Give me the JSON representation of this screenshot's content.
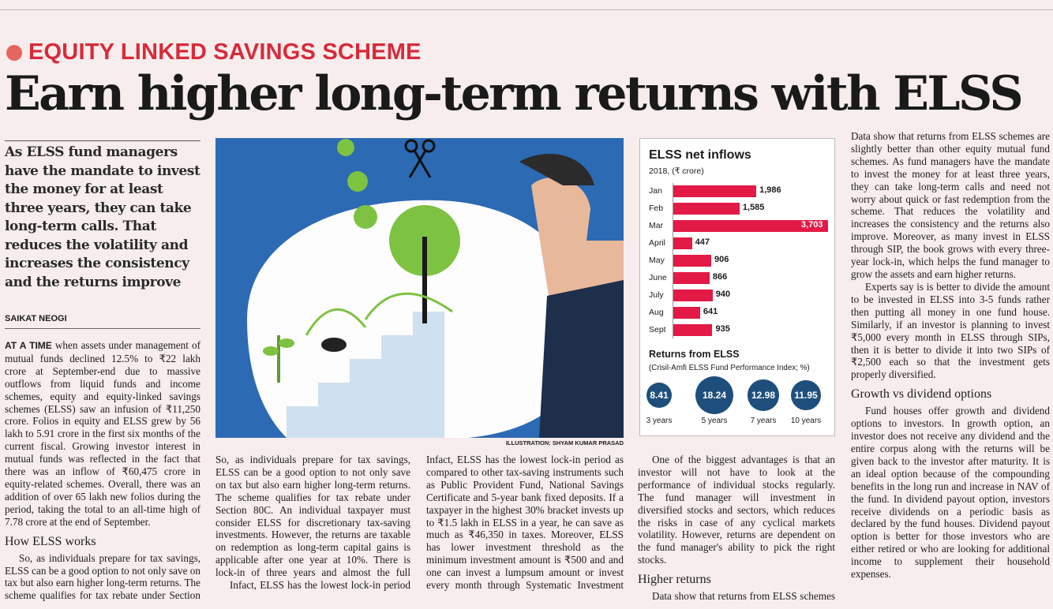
{
  "kicker": "EQUITY LINKED SAVINGS SCHEME",
  "headline": "Earn higher long-term returns with ELSS",
  "deck": "As ELSS fund managers have the mandate to invest the money for at least three years, they can take long-term calls. That reduces the volatility and increases the consistency and the returns improve",
  "byline": "SAIKAT NEOGI",
  "illustration_credit": "ILLUSTRATION: SHYAM KUMAR PRASAD",
  "body": {
    "lead": "AT A TIME",
    "p1": " when assets under management of mutual funds declined 12.5% to ₹22 lakh crore at September-end due to massive outflows from liquid funds and income schemes, equity and equity-linked savings schemes (ELSS) saw an infusion of ₹11,250 crore. Folios in equity and ELSS grew by 56 lakh to 5.91 crore in the first six months of the current fiscal. Growing investor interest in mutual funds was reflected in the fact that there was an inflow of ₹60,475 crore in equity-related schemes. Overall, there was an addition of over 65 lakh new folios during the period, taking the total to an all-time high of 7.78 crore at the end of September.",
    "sub1": "How ELSS works",
    "p2": "So, as individuals prepare for tax savings, ELSS can be a good option to not only save on tax but also earn higher long-term returns. The scheme qualifies for tax rebate under Section 80C. An individual taxpayer must consider ELSS for discretionary tax-saving investments. However, the returns are taxable on redemption as long-term capital gains is applicable after one year at 10%. There is lock-in of three years and almost the full amount is invested in shares of various companies. There is no cap or limit on how much an individual can invest in an ELSS.",
    "p3": "Infact, ELSS has the lowest lock-in period as compared to other tax-saving instruments such as Public Provident Fund, National Savings Certificate and 5-year bank fixed deposits. If a taxpayer in the highest 30% bracket invests up to ₹1.5 lakh in ELSS in a year, he can save as much as ₹46,350 in taxes. Moreover, ELSS has lower investment threshold as the minimum investment amount is ₹500 and and one can invest a lumpsum amount or invest every month through Systematic Investment Plans (SIPs).",
    "p4": "One of the biggest advantages is that an investor will not have to look at the performance of individual stocks regularly. The fund manager will investment in diversified stocks and sectors, which reduces the risks in case of any cyclical markets volatility. However, returns are dependent on the fund manager's ability to pick the right stocks.",
    "sub2": "Higher returns",
    "p5": "Data show that returns from ELSS schemes are slightly better than other equity mutual fund schemes. As fund managers have the mandate to invest the money for at least three years, they can take long-term calls and need not worry about quick or fast redemption from the scheme. That reduces the volatility and increases the consistency and the returns also improve. Moreover, as many invest in ELSS through SIP, the book grows with every three-year lock-in, which helps the fund manager to grow the assets and earn higher returns.",
    "p6": "Experts say is is better to divide the amount to be invested in ELSS into 3-5 funds rather then putting all money in one fund house. Similarly, if an investor is planning to invest ₹5,000 every month in ELSS through SIPs, then it is better to divide it into two SIPs of ₹2,500 each so that the investment gets properly diversified.",
    "sub3": "Growth vs dividend options",
    "p7": "Fund houses offer growth and dividend options to investors. In growth option, an investor does not receive any dividend and the entire corpus along with the returns will be given back to the investor after maturity. It is an ideal option because of the compounding benefits in the long run and increase in NAV of the fund. In dividend payout option, investors receive dividends on a periodic basis as declared by the fund houses. Dividend payout option is better for those investors who are either retired or who are looking for additional income to supplement their household expenses."
  },
  "chart_data": [
    {
      "type": "bar",
      "orientation": "horizontal",
      "title": "ELSS net inflows",
      "subtitle": "2018, (₹ crore)",
      "categories": [
        "Jan",
        "Feb",
        "Mar",
        "April",
        "May",
        "June",
        "July",
        "Aug",
        "Sept"
      ],
      "values": [
        1986,
        1585,
        3703,
        447,
        906,
        866,
        940,
        641,
        935
      ],
      "value_labels": [
        "1,986",
        "1,585",
        "3,703",
        "447",
        "906",
        "866",
        "940",
        "641",
        "935"
      ],
      "color": "#e21a45"
    },
    {
      "type": "bubble",
      "title": "Returns from ELSS",
      "subtitle": "(Crisil-Amfi ELSS Fund Performance Index; %)",
      "categories": [
        "3 years",
        "5 years",
        "7 years",
        "10 years"
      ],
      "values": [
        8.41,
        18.24,
        12.98,
        11.95
      ],
      "value_labels": [
        "8.41",
        "18.24",
        "12.98",
        "11.95"
      ],
      "color": "#1e4f7c"
    }
  ],
  "colors": {
    "kicker": "#d72b3a",
    "illustration_bg": "#2c6ab4",
    "page_bg": "#f7eded"
  }
}
